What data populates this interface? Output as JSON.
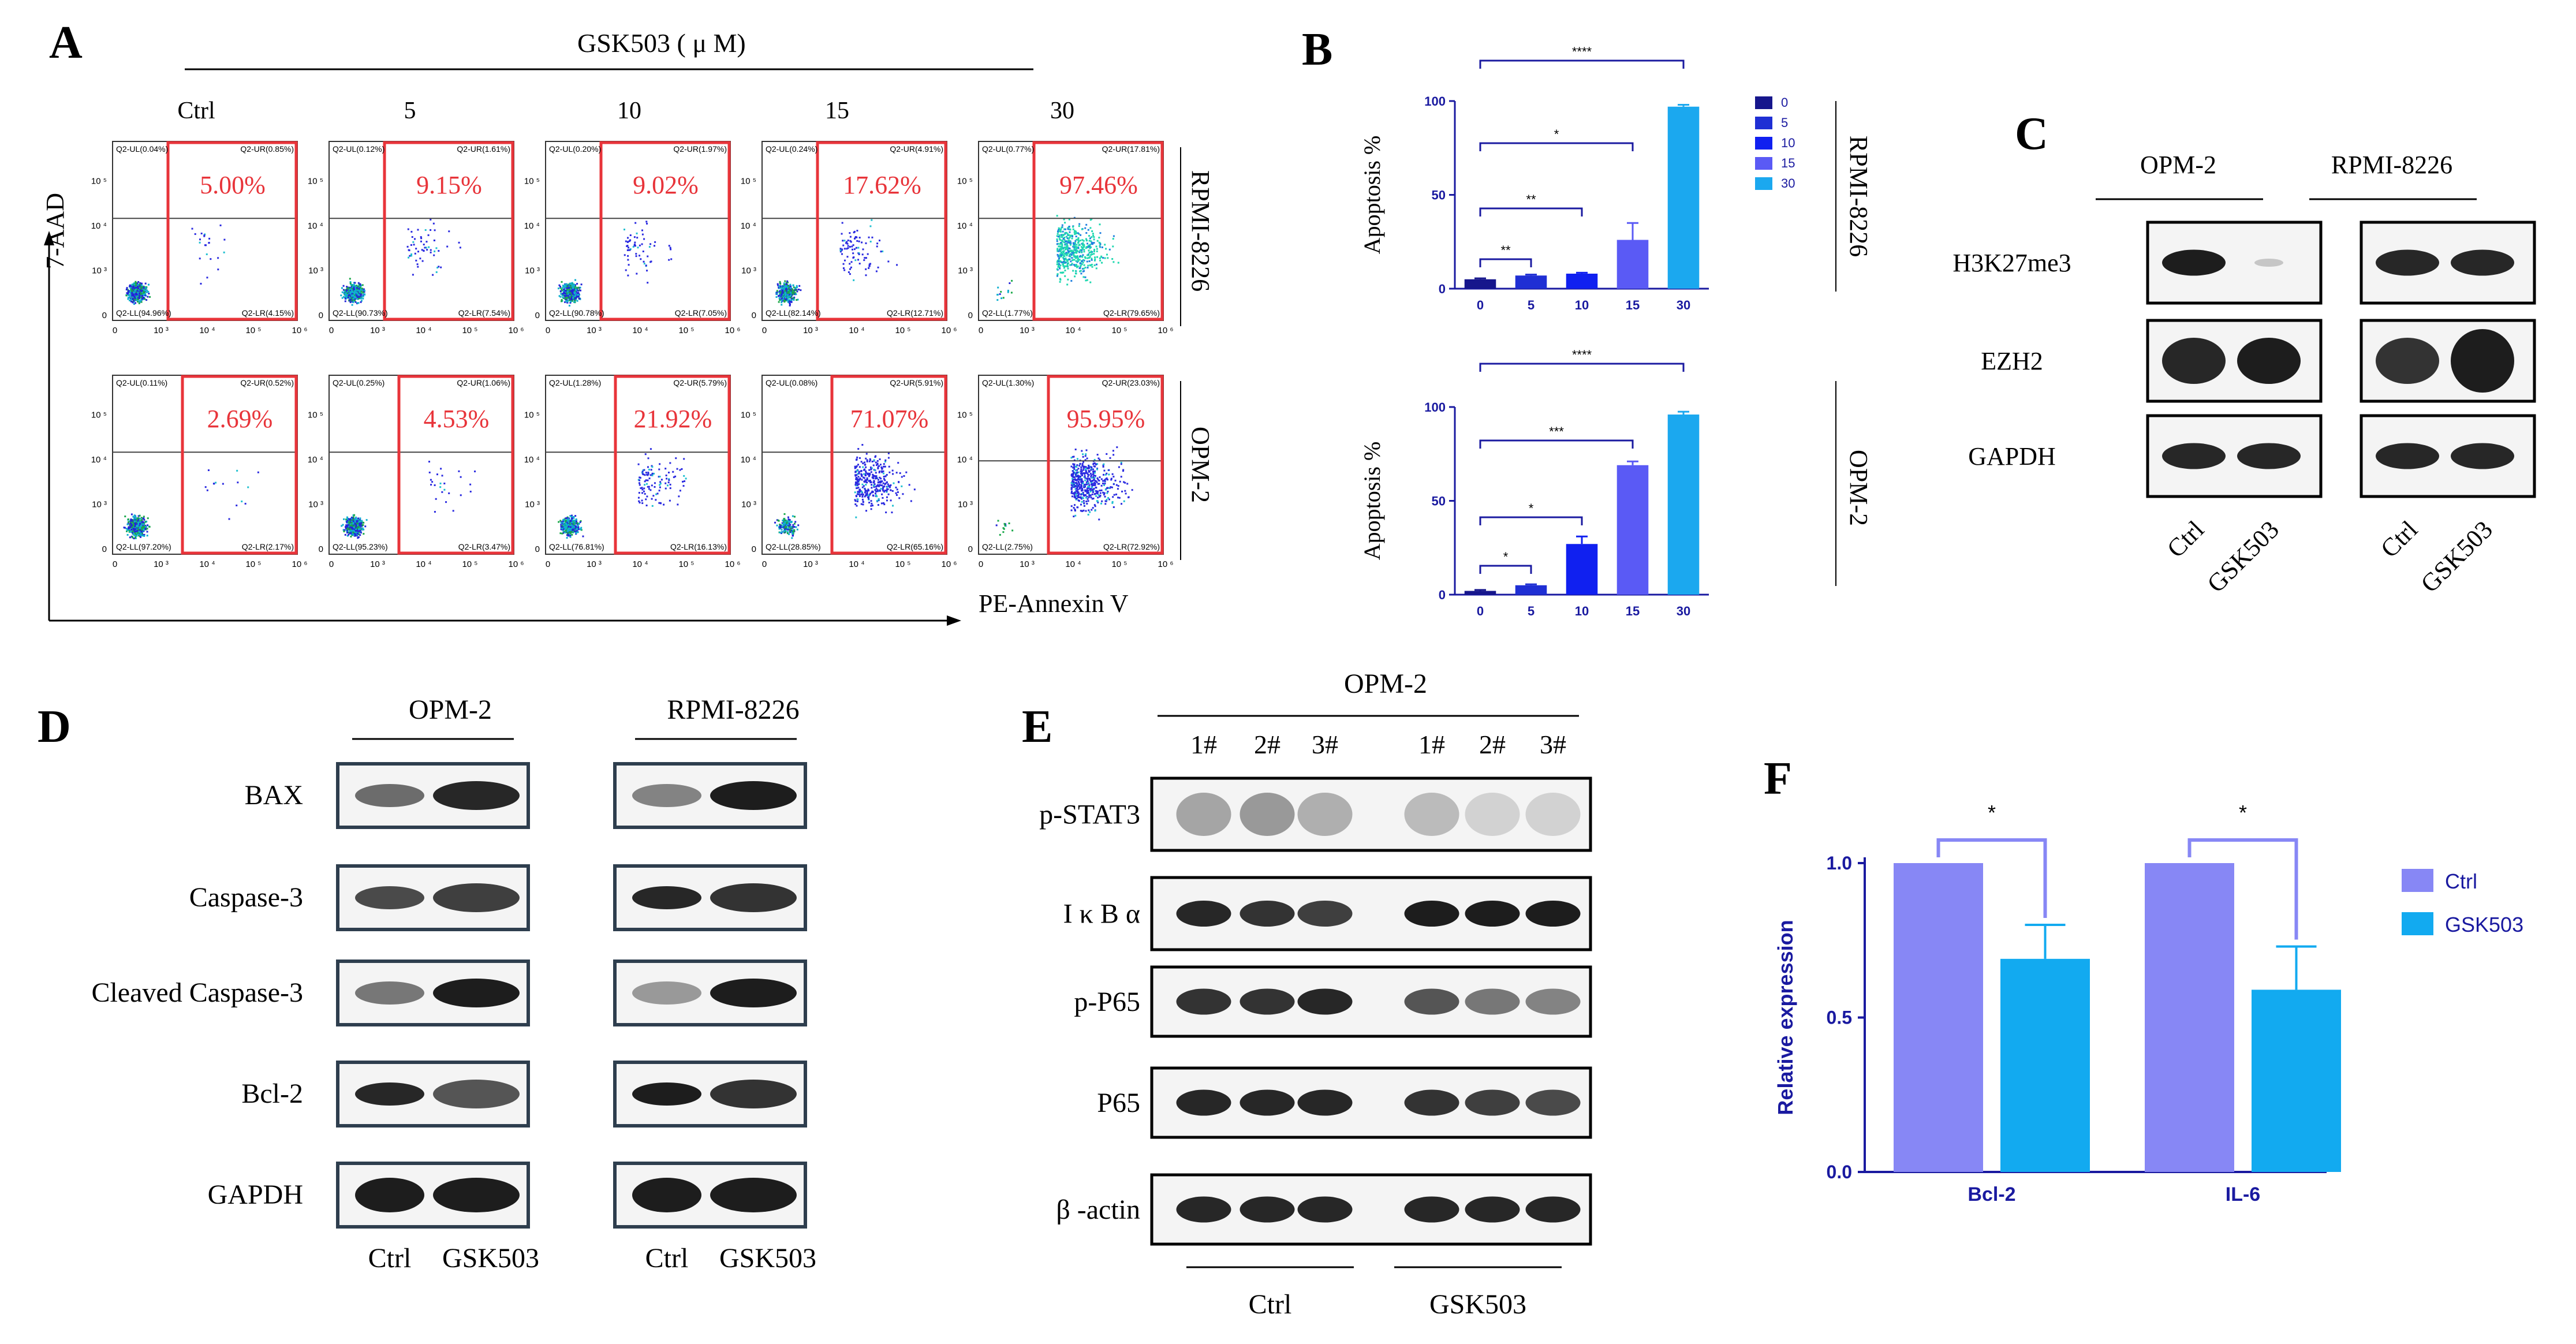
{
  "colors": {
    "red": "#e8343a",
    "navy": "#1a1aa0",
    "blue_dark": "#10108a",
    "blue_0": "#16168c",
    "blue_5": "#1f2fd4",
    "blue_10": "#1020f0",
    "blue_15": "#5a5af5",
    "blue_30": "#1ba8ef",
    "ctrl": "#8787f5",
    "gsk": "#12aaf0"
  },
  "panel_a": {
    "label": "A",
    "treatment": "GSK503 ( μ M)",
    "concentrations": [
      "Ctrl",
      "5",
      "10",
      "15",
      "30"
    ],
    "y_axis": "7-AAD",
    "x_axis": "PE-Annexin V",
    "rows": [
      {
        "cell_line": "RPMI-8226",
        "plots": [
          {
            "pct": "5.00%",
            "ul": "Q2-UL(0.04%)",
            "ur": "Q2-UR(0.85%)",
            "ll": "Q2-LL(94.96%)",
            "lr": "Q2-LR(4.15%)"
          },
          {
            "pct": "9.15%",
            "ul": "Q2-UL(0.12%)",
            "ur": "Q2-UR(1.61%)",
            "ll": "Q2-LL(90.73%)",
            "lr": "Q2-LR(7.54%)"
          },
          {
            "pct": "9.02%",
            "ul": "Q2-UL(0.20%)",
            "ur": "Q2-UR(1.97%)",
            "ll": "Q2-LL(90.78%)",
            "lr": "Q2-LR(7.05%)"
          },
          {
            "pct": "17.62%",
            "ul": "Q2-UL(0.24%)",
            "ur": "Q2-UR(4.91%)",
            "ll": "Q2-LL(82.14%)",
            "lr": "Q2-LR(12.71%)"
          },
          {
            "pct": "97.46%",
            "ul": "Q2-UL(0.77%)",
            "ur": "Q2-UR(17.81%)",
            "ll": "Q2-LL(1.77%)",
            "lr": "Q2-LR(79.65%)"
          }
        ]
      },
      {
        "cell_line": "OPM-2",
        "plots": [
          {
            "pct": "2.69%",
            "ul": "Q2-UL(0.11%)",
            "ur": "Q2-UR(0.52%)",
            "ll": "Q2-LL(97.20%)",
            "lr": "Q2-LR(2.17%)"
          },
          {
            "pct": "4.53%",
            "ul": "Q2-UL(0.25%)",
            "ur": "Q2-UR(1.06%)",
            "ll": "Q2-LL(95.23%)",
            "lr": "Q2-LR(3.47%)"
          },
          {
            "pct": "21.92%",
            "ul": "Q2-UL(1.28%)",
            "ur": "Q2-UR(5.79%)",
            "ll": "Q2-LL(76.81%)",
            "lr": "Q2-LR(16.13%)"
          },
          {
            "pct": "71.07%",
            "ul": "Q2-UL(0.08%)",
            "ur": "Q2-UR(5.91%)",
            "ll": "Q2-LL(28.85%)",
            "lr": "Q2-LR(65.16%)"
          },
          {
            "pct": "95.95%",
            "ul": "Q2-UL(1.30%)",
            "ur": "Q2-UR(23.03%)",
            "ll": "Q2-LL(2.75%)",
            "lr": "Q2-LR(72.92%)"
          }
        ]
      }
    ],
    "axis_ticks": [
      "0",
      "10 ³",
      "10 ⁴",
      "10 ⁵",
      "10 ⁶"
    ]
  },
  "panel_b": {
    "label": "B"
  },
  "panel_c": {
    "label": "C",
    "groups": [
      "OPM-2",
      "RPMI-8226"
    ],
    "proteins": [
      "H3K27me3",
      "EZH2",
      "GAPDH"
    ],
    "lanes": [
      "Ctrl",
      "GSK503"
    ]
  },
  "panel_d": {
    "label": "D",
    "groups": [
      "OPM-2",
      "RPMI-8226"
    ],
    "proteins": [
      "BAX",
      "Caspase-3",
      "Cleaved Caspase-3",
      "Bcl-2",
      "GAPDH"
    ],
    "lanes": [
      "Ctrl",
      "GSK503"
    ]
  },
  "panel_e": {
    "label": "E",
    "cell_line": "OPM-2",
    "replicates": [
      "1#",
      "2#",
      "3#",
      "1#",
      "2#",
      "3#"
    ],
    "proteins": [
      "p-STAT3",
      "I κ B α",
      "p-P65",
      "P65",
      "β -actin"
    ],
    "groups": [
      "Ctrl",
      "GSK503"
    ]
  },
  "panel_f": {
    "label": "F"
  },
  "chart_data": [
    {
      "type": "bar",
      "panel": "B",
      "cell_line": "RPMI-8226",
      "categories": [
        "0",
        "5",
        "10",
        "15",
        "30"
      ],
      "values": [
        5,
        7,
        8,
        26,
        97
      ],
      "errors": [
        0.5,
        0.5,
        0.5,
        9,
        1
      ],
      "ylabel": "Apoptosis %",
      "ylim": [
        0,
        100
      ],
      "yticks": [
        "0",
        "50",
        "100"
      ],
      "legend": [
        "0",
        "5",
        "10",
        "15",
        "30"
      ],
      "significance": [
        {
          "from": "0",
          "to": "5",
          "label": "**"
        },
        {
          "from": "0",
          "to": "10",
          "label": "**"
        },
        {
          "from": "0",
          "to": "15",
          "label": "*"
        },
        {
          "from": "0",
          "to": "30",
          "label": "****"
        }
      ]
    },
    {
      "type": "bar",
      "panel": "B",
      "cell_line": "OPM-2",
      "categories": [
        "0",
        "5",
        "10",
        "15",
        "30"
      ],
      "values": [
        2,
        5,
        27,
        69,
        96
      ],
      "errors": [
        0.5,
        0.5,
        4,
        2,
        1.5
      ],
      "ylabel": "Apoptosis %",
      "ylim": [
        0,
        100
      ],
      "yticks": [
        "0",
        "50",
        "100"
      ],
      "significance": [
        {
          "from": "0",
          "to": "5",
          "label": "*"
        },
        {
          "from": "0",
          "to": "10",
          "label": "*"
        },
        {
          "from": "0",
          "to": "15",
          "label": "***"
        },
        {
          "from": "0",
          "to": "30",
          "label": "****"
        }
      ]
    },
    {
      "type": "bar",
      "panel": "F",
      "categories": [
        "Bcl-2",
        "IL-6"
      ],
      "series": [
        {
          "name": "Ctrl",
          "values": [
            1.0,
            1.0
          ],
          "errors": [
            0,
            0
          ]
        },
        {
          "name": "GSK503",
          "values": [
            0.69,
            0.59
          ],
          "errors": [
            0.11,
            0.14
          ]
        }
      ],
      "ylabel": "Relative expression",
      "ylim": [
        0,
        1.0
      ],
      "yticks": [
        "0.0",
        "0.5",
        "1.0"
      ],
      "significance": [
        "*",
        "*"
      ],
      "legend_position": "top-right"
    }
  ]
}
